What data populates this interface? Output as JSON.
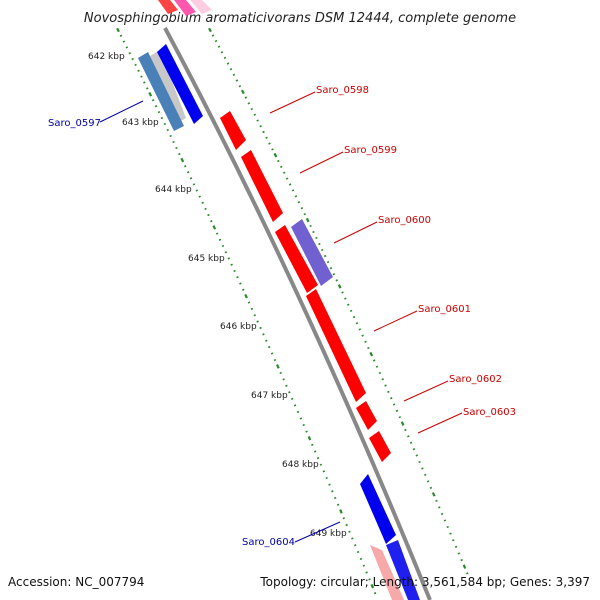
{
  "title": "Novosphingobium aromaticivorans DSM 12444, complete genome",
  "accession": "Accession: NC_007794",
  "summary": "Topology: circular; Length: 3,561,584 bp; Genes: 3,397",
  "colors": {
    "forward_gene": "#ff0000",
    "reverse_gene": "#0000ee",
    "pseudo_gene": "#7060d0",
    "rna_gene": "#4a80b8",
    "tick": "#2a8a2a",
    "backbone": "#888888",
    "label_forward": "#cc0000",
    "label_reverse": "#0000aa"
  },
  "kbp_ticks": [
    "642 kbp",
    "643 kbp",
    "644 kbp",
    "645 kbp",
    "646 kbp",
    "647 kbp",
    "648 kbp",
    "649 kbp"
  ],
  "genes": [
    {
      "id": "Saro_0597",
      "strand": "reverse",
      "color": "#0000ee"
    },
    {
      "id": "Saro_0598",
      "strand": "forward",
      "color": "#ff0000"
    },
    {
      "id": "Saro_0599",
      "strand": "forward",
      "color": "#ff0000"
    },
    {
      "id": "Saro_0600",
      "strand": "forward",
      "color": "#7060d0"
    },
    {
      "id": "Saro_0601",
      "strand": "forward",
      "color": "#ff0000"
    },
    {
      "id": "Saro_0602",
      "strand": "forward",
      "color": "#ff0000"
    },
    {
      "id": "Saro_0603",
      "strand": "forward",
      "color": "#ff0000"
    },
    {
      "id": "Saro_0604",
      "strand": "reverse",
      "color": "#0000ee"
    }
  ]
}
